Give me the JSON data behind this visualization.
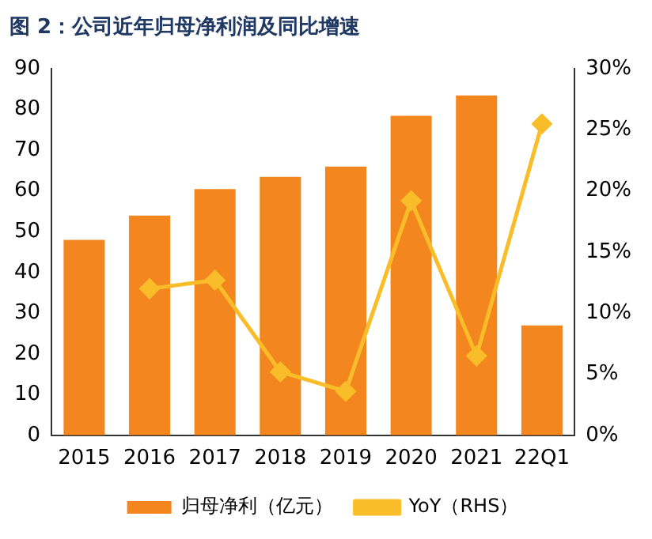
{
  "chart_data": {
    "type": "bar",
    "title": "图 2：公司近年归母净利润及同比增速",
    "categories": [
      "2015",
      "2016",
      "2017",
      "2018",
      "2019",
      "2020",
      "2021",
      "22Q1"
    ],
    "series": [
      {
        "name": "归母净利（亿元）",
        "color": "#f4861f",
        "values": [
          48,
          54,
          60.5,
          63.5,
          66,
          78.5,
          83.5,
          27
        ]
      },
      {
        "name": "YoY（RHS）",
        "type": "line",
        "axis": "y2",
        "color": "#f9bd2a",
        "marker": "diamond",
        "values": [
          null,
          12,
          12.7,
          5.2,
          3.6,
          19.2,
          6.5,
          25.5
        ]
      }
    ],
    "ylim": [
      0,
      90
    ],
    "yticks": [
      0,
      10,
      20,
      30,
      40,
      50,
      60,
      70,
      80,
      90
    ],
    "y2lim": [
      0,
      30
    ],
    "y2ticks": [
      {
        "value": 0,
        "label": "0%"
      },
      {
        "value": 5,
        "label": "5%"
      },
      {
        "value": 10,
        "label": "10%"
      },
      {
        "value": 15,
        "label": "15%"
      },
      {
        "value": 20,
        "label": "20%"
      },
      {
        "value": 25,
        "label": "25%"
      },
      {
        "value": 30,
        "label": "30%"
      }
    ],
    "grid": false,
    "legend": "bottom"
  }
}
